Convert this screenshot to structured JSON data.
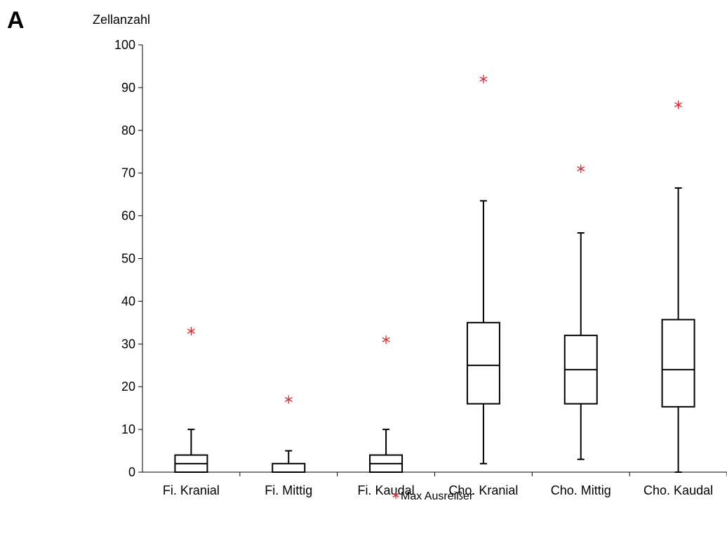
{
  "panel_label": "A",
  "chart_data": {
    "type": "boxplot",
    "title": "",
    "ylabel": "Zellanzahl",
    "xlabel": "",
    "ylim": [
      0,
      100
    ],
    "yticks": [
      0,
      10,
      20,
      30,
      40,
      50,
      60,
      70,
      80,
      90,
      100
    ],
    "grid": false,
    "categories": [
      "Fi. Kranial",
      "Fi. Mittig",
      "Fi. Kaudal",
      "Cho. Kranial",
      "Cho. Mittig",
      "Cho. Kaudal"
    ],
    "boxes": [
      {
        "whisker_low": 0,
        "q1": 0,
        "median": 2,
        "q3": 4,
        "whisker_high": 10,
        "outlier_max": 33
      },
      {
        "whisker_low": 0,
        "q1": 0,
        "median": 0,
        "q3": 2,
        "whisker_high": 5,
        "outlier_max": 17
      },
      {
        "whisker_low": 0,
        "q1": 0,
        "median": 2,
        "q3": 4,
        "whisker_high": 10,
        "outlier_max": 31
      },
      {
        "whisker_low": 2,
        "q1": 16,
        "median": 25,
        "q3": 35,
        "whisker_high": 63.5,
        "outlier_max": 92
      },
      {
        "whisker_low": 3,
        "q1": 16,
        "median": 24,
        "q3": 32,
        "whisker_high": 56,
        "outlier_max": 71
      },
      {
        "whisker_low": 0,
        "q1": 15.3,
        "median": 24,
        "q3": 35.7,
        "whisker_high": 66.5,
        "outlier_max": 86
      }
    ],
    "legend": {
      "label": "Max Ausreißer",
      "marker": "asterisk",
      "position": "bottom-center"
    },
    "colors": {
      "box": "#000000",
      "outlier": "#e3262c"
    }
  }
}
